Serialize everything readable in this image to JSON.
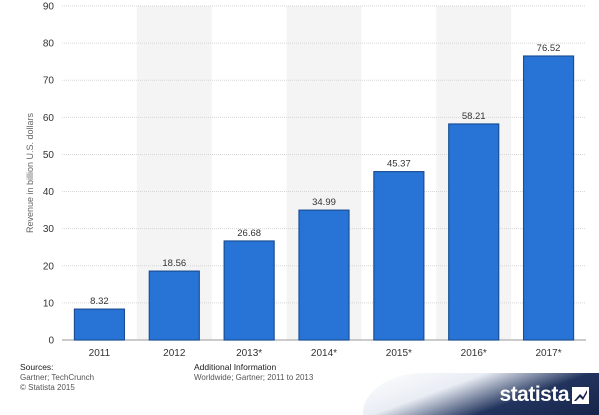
{
  "chart_data": {
    "type": "bar",
    "categories": [
      "2011",
      "2012",
      "2013*",
      "2014*",
      "2015*",
      "2016*",
      "2017*"
    ],
    "values": [
      8.32,
      18.56,
      26.68,
      34.99,
      45.37,
      58.21,
      76.52
    ],
    "value_labels": [
      "8.32",
      "18.56",
      "26.68",
      "34.99",
      "45.37",
      "58.21",
      "76.52"
    ],
    "title": "",
    "xlabel": "",
    "ylabel": "Revenue in billion U.S. dollars",
    "ylim": [
      0,
      90
    ],
    "yticks": [
      0,
      10,
      20,
      30,
      40,
      50,
      60,
      70,
      80,
      90
    ],
    "grid": true,
    "bar_color": "#2874d6",
    "bar_edge_color": "#1a4f96"
  },
  "footer": {
    "sources_heading": "Sources:",
    "sources_lines": [
      "Gartner; TechCrunch",
      "© Statista 2015"
    ],
    "additional_heading": "Additional Information",
    "additional_lines": [
      "Worldwide; Gartner; 2011 to 2013"
    ]
  },
  "brand": {
    "name": "statista",
    "icon": "statista-logo-icon"
  }
}
